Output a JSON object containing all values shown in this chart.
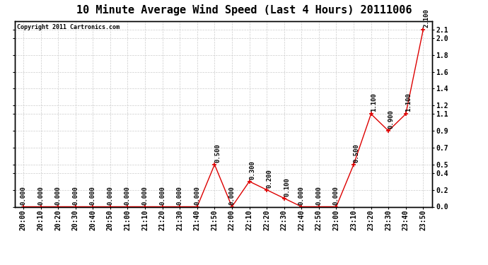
{
  "title": "10 Minute Average Wind Speed (Last 4 Hours) 20111006",
  "copyright": "Copyright 2011 Cartronics.com",
  "x_labels": [
    "20:00",
    "20:10",
    "20:20",
    "20:30",
    "20:40",
    "20:50",
    "21:00",
    "21:10",
    "21:20",
    "21:30",
    "21:40",
    "21:50",
    "22:00",
    "22:10",
    "22:20",
    "22:30",
    "22:40",
    "22:50",
    "23:00",
    "23:10",
    "23:20",
    "23:30",
    "23:40",
    "23:50"
  ],
  "y_values": [
    0.0,
    0.0,
    0.0,
    0.0,
    0.0,
    0.0,
    0.0,
    0.0,
    0.0,
    0.0,
    0.0,
    0.5,
    0.0,
    0.3,
    0.2,
    0.1,
    0.0,
    0.0,
    0.0,
    0.5,
    1.1,
    0.9,
    1.1,
    2.1
  ],
  "line_color": "#dd0000",
  "marker": "+",
  "marker_size": 5,
  "marker_color": "#dd0000",
  "background_color": "#ffffff",
  "plot_bg_color": "#ffffff",
  "grid_color": "#cccccc",
  "title_fontsize": 11,
  "copyright_fontsize": 6,
  "tick_fontsize": 7,
  "annotation_fontsize": 6.5,
  "ylim": [
    0.0,
    2.2
  ],
  "yticks_right": [
    0.0,
    0.2,
    0.4,
    0.5,
    0.7,
    0.9,
    1.1,
    1.2,
    1.4,
    1.6,
    1.8,
    2.0,
    2.1
  ],
  "zero_annotate_indices": [
    0,
    1,
    2,
    3,
    4,
    5,
    6,
    7,
    8,
    9,
    10,
    12,
    16,
    17,
    18
  ],
  "nonzero_annotations": {
    "11": "0.500",
    "13": "0.300",
    "14": "0.200",
    "15": "0.100",
    "19": "0.500",
    "20": "1.100",
    "21": "0.900",
    "22": "1.100",
    "23": "2.100"
  }
}
